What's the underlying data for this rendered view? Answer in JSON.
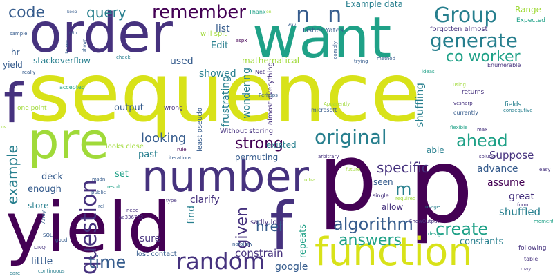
{
  "word_cloud": {
    "background": "#ffffff",
    "palette": [
      "#440154",
      "#46327e",
      "#365c8d",
      "#277f8e",
      "#1fa187",
      "#4ac16d",
      "#a0da39",
      "#fde725"
    ],
    "words": [
      "sequence",
      "p",
      "p",
      "yield",
      "f",
      "f",
      "want",
      "order",
      "number",
      "function",
      "pre",
      "random",
      "n",
      "n",
      "Group",
      "question",
      "original",
      "generate",
      "co worker",
      "algorithm",
      "create",
      "answers",
      "code",
      "query",
      "remember",
      "time",
      "strong",
      "ahead",
      "example",
      "given",
      "specific",
      "href",
      "m",
      "looking",
      "constrain",
      "Suppose",
      "shuffling",
      "shuffled",
      "Example data",
      "Fisher Yates",
      "Range",
      "Edit",
      "list",
      "showed",
      "mathematical",
      "stackoverflow",
      "used",
      "wondering",
      "frustrating",
      "output",
      "deck",
      "enough",
      "set",
      "past",
      "existed",
      "permuting",
      "able",
      "advance",
      "seen",
      "assume",
      "great",
      "allow",
      "clarify",
      "store",
      "sure",
      "find",
      "little",
      "google",
      "repeats",
      "constants",
      "lost contact",
      "sadly lost",
      "hr",
      "yield",
      "almost everything",
      "Without storing",
      "least pseudo",
      "forgotten almost",
      "Expected",
      "accepted",
      "one point",
      "Enumerable",
      "returns",
      "fields",
      "consequtive",
      "currently",
      "vcsharp",
      "microsoft",
      "Apparently",
      "will spit",
      "Thank",
      "sample",
      "aspx",
      "Net",
      "rule",
      "iterations",
      "wrong",
      "looks close",
      "result",
      "public",
      "need",
      "aa336752",
      "msdn",
      "ultra",
      "single",
      "required",
      "usage",
      "design",
      "solution",
      "flexible",
      "easy",
      "form",
      "moment",
      "following",
      "table",
      "may",
      "comply",
      "trying",
      "method",
      "check",
      "really",
      "Perhaps",
      "using",
      "ideas",
      "max",
      "arbitrary",
      "future",
      "ShowOutput",
      "SQL",
      "LINQ",
      "Array",
      "good",
      "rel",
      "type",
      "care",
      "continuous",
      "nofollow",
      "keep",
      "min",
      "way",
      "known",
      "en",
      "us",
      "shown"
    ]
  }
}
